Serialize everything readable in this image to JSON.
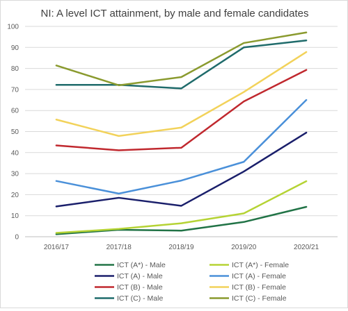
{
  "chart_data": {
    "type": "line",
    "title": "NI: A level ICT attainment, by male and female candidates",
    "xlabel": "",
    "ylabel": "",
    "categories": [
      "2016/17",
      "2017/18",
      "2018/19",
      "2019/20",
      "2020/21"
    ],
    "ylim": [
      0,
      100
    ],
    "yticks": [
      0,
      10,
      20,
      30,
      40,
      50,
      60,
      70,
      80,
      90,
      100
    ],
    "grid": true,
    "legend": "bottom",
    "series": [
      {
        "name": "ICT (A*) - Male",
        "color": "#217346",
        "values": [
          1.2,
          3.3,
          2.9,
          7.0,
          14.2
        ]
      },
      {
        "name": "ICT (A*) - Female",
        "color": "#b5d334",
        "values": [
          1.8,
          3.7,
          6.4,
          11.1,
          26.4
        ]
      },
      {
        "name": "ICT (A) - Male",
        "color": "#1a1f6b",
        "values": [
          14.4,
          18.5,
          14.7,
          31.0,
          49.5
        ]
      },
      {
        "name": "ICT (A) - Female",
        "color": "#4a90d9",
        "values": [
          26.5,
          20.5,
          26.7,
          35.6,
          65.0
        ]
      },
      {
        "name": "ICT (B) - Male",
        "color": "#c0282e",
        "values": [
          43.4,
          41.1,
          42.3,
          64.3,
          79.3
        ]
      },
      {
        "name": "ICT (B) - Female",
        "color": "#f2d25a",
        "values": [
          55.7,
          47.9,
          51.9,
          68.8,
          87.8
        ]
      },
      {
        "name": "ICT (C) - Male",
        "color": "#1f6b6b",
        "values": [
          72.2,
          72.2,
          70.5,
          90.0,
          93.3
        ]
      },
      {
        "name": "ICT (C) - Female",
        "color": "#8a9a2e",
        "values": [
          81.4,
          72.0,
          75.9,
          92.1,
          97.1
        ]
      }
    ]
  }
}
